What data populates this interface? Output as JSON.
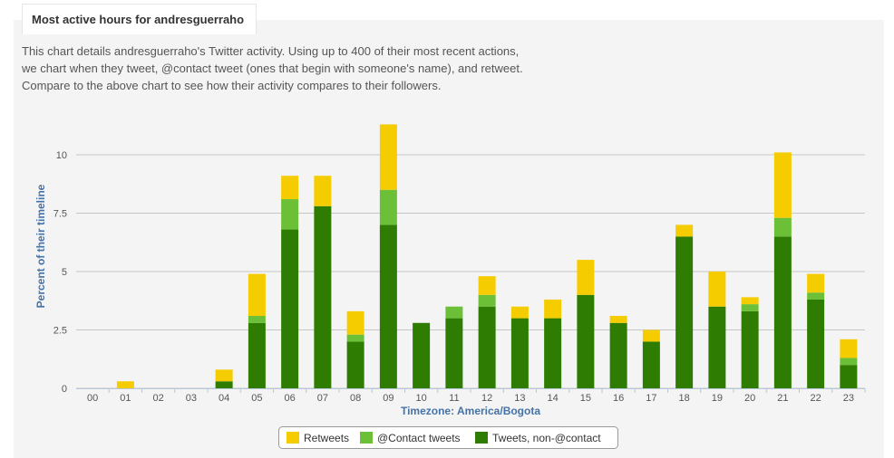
{
  "panel": {
    "title": "Most active hours for andresguerraho",
    "description_lines": [
      "This chart details andresguerraho's Twitter activity. Using up to 400 of their most recent actions,",
      "we chart when they tweet, @contact tweet (ones that begin with someone's name), and retweet.",
      "Compare to the above chart to see how their activity compares to their followers."
    ]
  },
  "chart_data": {
    "type": "bar",
    "stacked": true,
    "title": "",
    "xlabel": "Timezone: America/Bogota",
    "ylabel": "Percent of their timeline",
    "ylim": [
      0,
      11.5
    ],
    "yticks": [
      "0",
      "2.5",
      "5",
      "7.5",
      "10"
    ],
    "ytick_values": [
      0,
      2.5,
      5,
      7.5,
      10
    ],
    "grid": true,
    "legend_position": "bottom-center",
    "categories": [
      "00",
      "01",
      "02",
      "03",
      "04",
      "05",
      "06",
      "07",
      "08",
      "09",
      "10",
      "11",
      "12",
      "13",
      "14",
      "15",
      "16",
      "17",
      "18",
      "19",
      "20",
      "21",
      "22",
      "23"
    ],
    "series": [
      {
        "name": "Tweets, non-@contact",
        "color": "#2e7d02",
        "values": [
          0,
          0,
          0,
          0,
          0.3,
          2.8,
          6.8,
          7.8,
          2.0,
          7.0,
          2.8,
          3.0,
          3.5,
          3.0,
          3.0,
          4.0,
          2.8,
          2.0,
          6.5,
          3.5,
          3.3,
          6.5,
          3.8,
          1.0
        ]
      },
      {
        "name": "@Contact tweets",
        "color": "#6cc038",
        "values": [
          0,
          0,
          0,
          0,
          0,
          0.3,
          1.3,
          0,
          0.3,
          1.5,
          0,
          0.5,
          0.5,
          0,
          0,
          0,
          0,
          0,
          0,
          0,
          0.3,
          0.8,
          0.3,
          0.3
        ]
      },
      {
        "name": "Retweets",
        "color": "#f4cc00",
        "values": [
          0,
          0.3,
          0,
          0,
          0.5,
          1.8,
          1.0,
          1.3,
          1.0,
          2.8,
          0,
          0,
          0.8,
          0.5,
          0.8,
          1.5,
          0.3,
          0.5,
          0.5,
          1.5,
          0.3,
          2.8,
          0.8,
          0.8
        ]
      }
    ],
    "legend": [
      "Retweets",
      "@Contact tweets",
      "Tweets, non-@contact"
    ]
  }
}
